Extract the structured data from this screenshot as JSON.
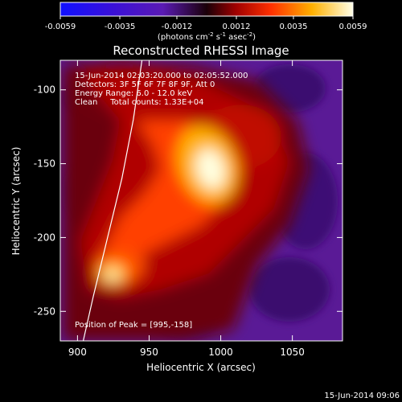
{
  "chart_data": {
    "type": "heatmap",
    "title": "Reconstructed RHESSI Image",
    "xlabel": "Heliocentric X (arcsec)",
    "ylabel": "Heliocentric Y (arcsec)",
    "xlim": [
      888,
      1085
    ],
    "ylim": [
      -270,
      -80
    ],
    "x_ticks": [
      900,
      950,
      1000,
      1050
    ],
    "y_ticks": [
      -100,
      -150,
      -200,
      -250
    ],
    "colorbar": {
      "range": [
        -0.0059,
        0.0059
      ],
      "ticks": [
        "-0.0059",
        "-0.0035",
        "-0.0012",
        "0.0012",
        "0.0035",
        "0.0059"
      ],
      "units_base": "(photons cm",
      "units_exp1": "-2",
      "units_mid": " s",
      "units_exp2": "-1",
      "units_mid2": " asec",
      "units_exp3": "-2",
      "units_end": ")"
    },
    "annotations": [
      "15-Jun-2014 02:03:20.000 to 02:05:52.000",
      "Detectors: 3F 5F 6F 7F 8F 9F, Att 0",
      "Energy Range: 6.0 - 12.0 keV",
      "Clean     Total counts: 1.33E+04"
    ],
    "peak_label": "Position of Peak = [995,-158]",
    "peak_position": [
      995,
      -158
    ],
    "secondary_source": [
      922,
      -225
    ],
    "limb_curve": [
      [
        945,
        -80
      ],
      [
        939,
        -120
      ],
      [
        931,
        -160
      ],
      [
        921,
        -200
      ],
      [
        911,
        -240
      ],
      [
        904,
        -270
      ]
    ],
    "timestamp": "15-Jun-2014 09:06"
  },
  "colors": {
    "background": "#000000",
    "text": "#ffffff",
    "negative_region": "#5a1a96",
    "limb": "#ffffff"
  }
}
